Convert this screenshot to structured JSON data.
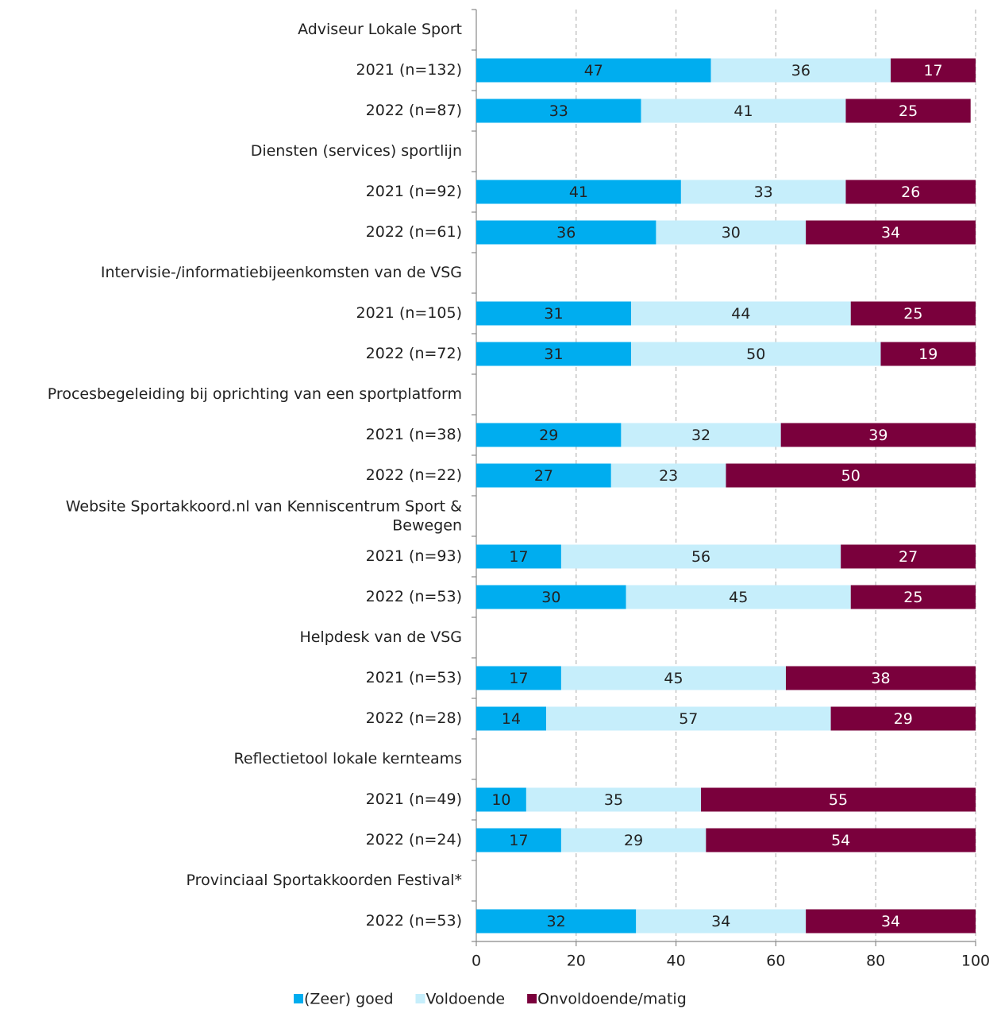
{
  "chart_data": {
    "type": "stacked_bar_horizontal",
    "categories": [
      "Adviseur Lokale Sport",
      "2021 (n=132)",
      "2022 (n=87)",
      "Diensten (services) sportlijn",
      "2021 (n=92)",
      "2022 (n=61)",
      "Intervisie-/informatiebijeenkomsten van de VSG",
      "2021 (n=105)",
      "2022 (n=72)",
      "Procesbegeleiding bij oprichting van een sportplatform",
      "2021 (n=38)",
      "2022 (n=22)",
      "Website Sportakkoord.nl van Kenniscentrum Sport & Bewegen",
      "2021 (n=93)",
      "2022 (n=53)",
      "Helpdesk van de VSG",
      "2021 (n=53)",
      "2022 (n=28)",
      "Reflectietool lokale kernteams",
      "2021 (n=49)",
      "2022 (n=24)",
      "Provinciaal Sportakkoorden Festival*",
      "2022 (n=53)"
    ],
    "series": [
      {
        "name": "(Zeer) goed",
        "color": "#00adef",
        "values": [
          null,
          47,
          33,
          null,
          41,
          36,
          null,
          31,
          31,
          null,
          29,
          27,
          null,
          17,
          30,
          null,
          17,
          14,
          null,
          10,
          17,
          null,
          32
        ]
      },
      {
        "name": "Voldoende",
        "color": "#c6eefb",
        "values": [
          null,
          36,
          41,
          null,
          33,
          30,
          null,
          44,
          50,
          null,
          32,
          23,
          null,
          56,
          45,
          null,
          45,
          57,
          null,
          35,
          29,
          null,
          34
        ]
      },
      {
        "name": "Onvoldoende/matig",
        "color": "#7a003c",
        "values": [
          null,
          17,
          25,
          null,
          26,
          34,
          null,
          25,
          19,
          null,
          39,
          50,
          null,
          27,
          25,
          null,
          38,
          29,
          null,
          55,
          54,
          null,
          34
        ]
      }
    ],
    "xlim": [
      0,
      100
    ],
    "xticks": [
      0,
      20,
      40,
      60,
      80,
      100
    ],
    "grid": true,
    "legend": "bottom"
  }
}
